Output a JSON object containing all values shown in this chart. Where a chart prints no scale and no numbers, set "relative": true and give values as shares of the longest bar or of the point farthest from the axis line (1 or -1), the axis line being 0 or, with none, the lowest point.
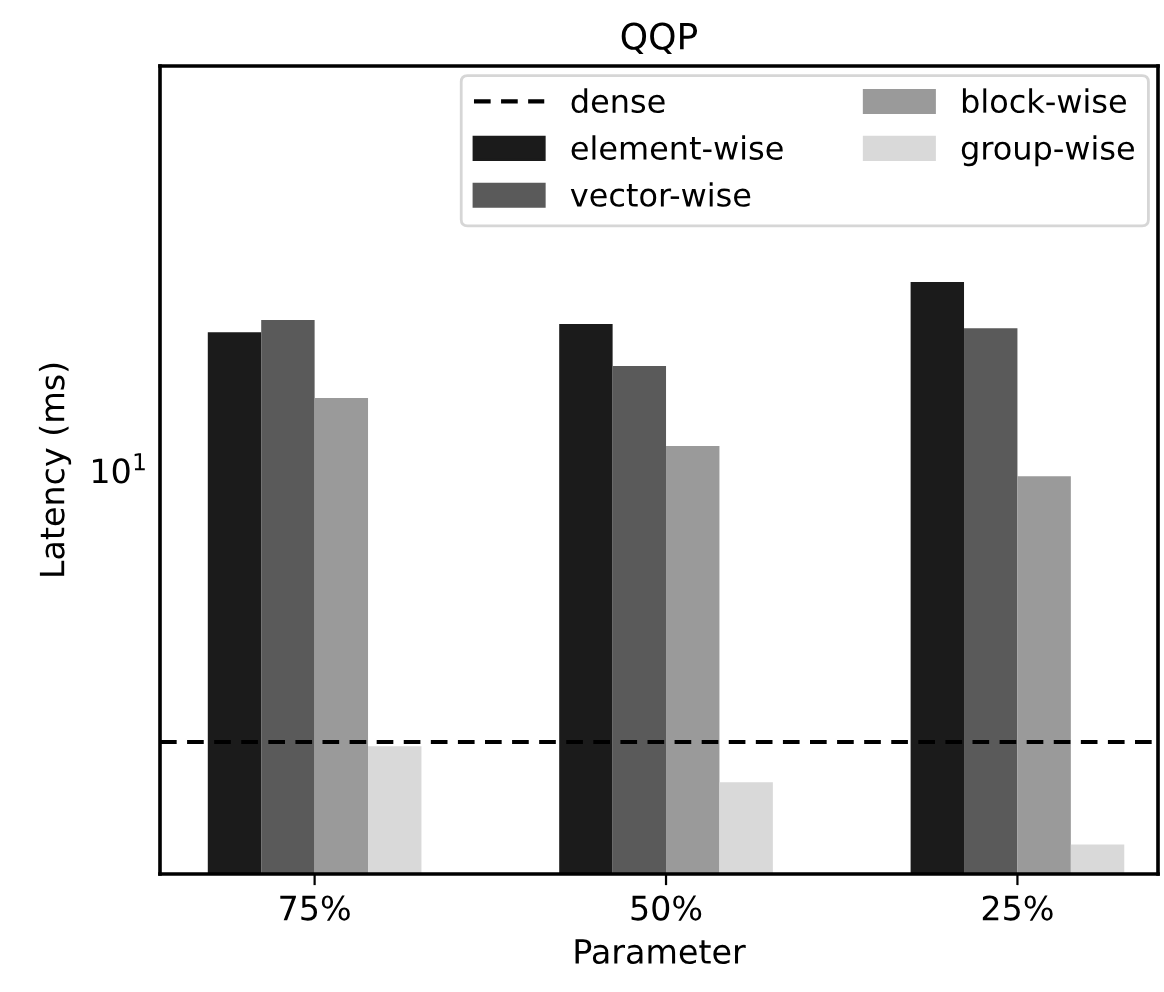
{
  "chart_data": {
    "type": "bar",
    "title": "QQP",
    "xlabel": "Parameter",
    "ylabel": "Latency (ms)",
    "relative": true,
    "categories": [
      "75%",
      "50%",
      "25%"
    ],
    "series": [
      {
        "name": "element-wise",
        "color": "#1b1b1b",
        "values": [
          0.915,
          0.929,
          1
        ]
      },
      {
        "name": "vector-wise",
        "color": "#5a5a5a",
        "values": [
          0.936,
          0.858,
          0.922
        ]
      },
      {
        "name": "block-wise",
        "color": "#9a9a9a",
        "values": [
          0.804,
          0.723,
          0.672
        ]
      },
      {
        "name": "group-wise",
        "color": "#d9d9d9",
        "values": [
          0.216,
          0.155,
          0.05
        ]
      }
    ],
    "ref_lines": [
      {
        "axis": "y",
        "value": 0.223,
        "label": "dense",
        "color": "#000000",
        "line_style": "dashed"
      }
    ],
    "annotations": [
      "10$^{1}$"
    ],
    "legend": "top right",
    "grid": false
  }
}
